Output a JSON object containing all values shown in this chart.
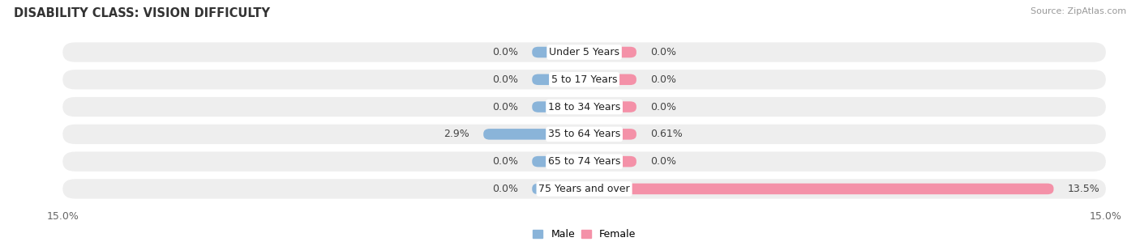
{
  "title": "DISABILITY CLASS: VISION DIFFICULTY",
  "source": "Source: ZipAtlas.com",
  "categories": [
    "Under 5 Years",
    "5 to 17 Years",
    "18 to 34 Years",
    "35 to 64 Years",
    "65 to 74 Years",
    "75 Years and over"
  ],
  "male_values": [
    0.0,
    0.0,
    0.0,
    2.9,
    0.0,
    0.0
  ],
  "female_values": [
    0.0,
    0.0,
    0.0,
    0.61,
    0.0,
    13.5
  ],
  "male_labels": [
    "0.0%",
    "0.0%",
    "0.0%",
    "2.9%",
    "0.0%",
    "0.0%"
  ],
  "female_labels": [
    "0.0%",
    "0.0%",
    "0.0%",
    "0.61%",
    "0.0%",
    "13.5%"
  ],
  "male_color": "#8ab4d9",
  "female_color": "#f491a8",
  "row_bg_color": "#eeeeee",
  "xlim": 15.0,
  "min_bar_width": 1.5,
  "title_fontsize": 10.5,
  "source_fontsize": 8,
  "label_fontsize": 9,
  "tick_fontsize": 9,
  "category_fontsize": 9,
  "background_color": "#ffffff",
  "legend_male": "Male",
  "legend_female": "Female"
}
